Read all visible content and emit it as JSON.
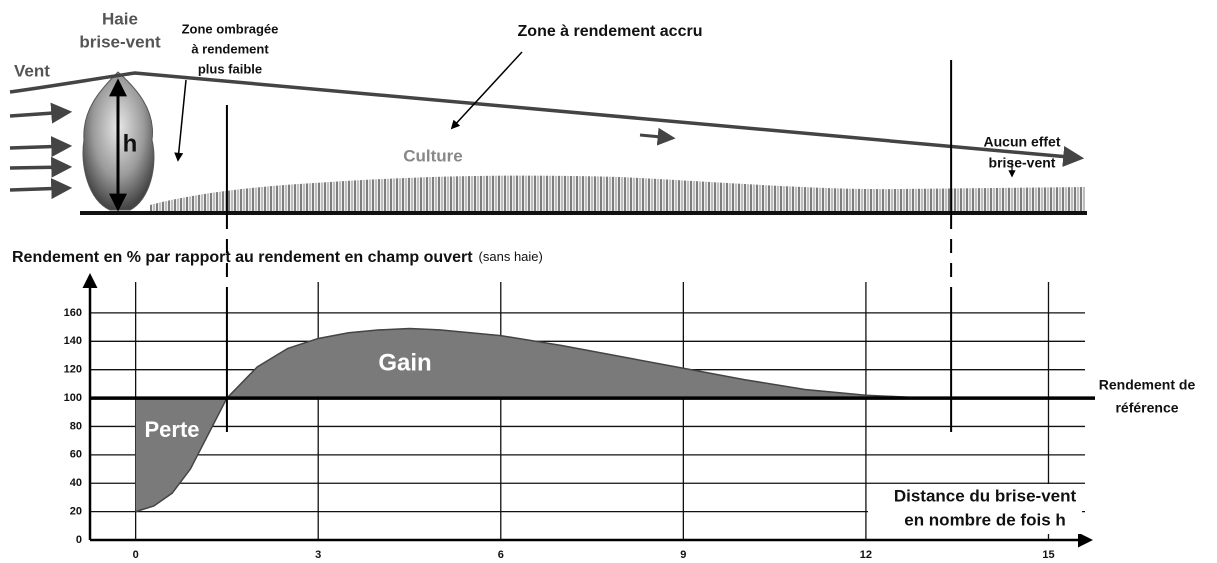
{
  "diagram": {
    "hedge_label": [
      "Haie",
      "brise-vent"
    ],
    "wind": "Vent",
    "height": "h",
    "shaded_zone": [
      "Zone ombragée",
      "à rendement",
      "plus faible"
    ],
    "increased_zone": "Zone à rendement accru",
    "crop": "Culture",
    "no_effect": [
      "Aucun effet",
      "brise-vent"
    ]
  },
  "chart_data": {
    "type": "area",
    "y_label": "Rendement en % par rapport au rendement en champ ouvert",
    "y_label_note": "(sans haie)",
    "x_label": [
      "Distance du brise-vent",
      "en nombre de fois h"
    ],
    "x": [
      0,
      0.3,
      0.6,
      0.9,
      1.2,
      1.5,
      2,
      2.5,
      3,
      3.5,
      4,
      4.5,
      5,
      6,
      7,
      8,
      9,
      10,
      11,
      12,
      13,
      13.4
    ],
    "values": [
      20,
      24,
      33,
      50,
      75,
      100,
      122,
      135,
      142,
      146,
      148,
      149,
      148,
      144,
      137,
      129,
      121,
      113,
      106,
      102,
      100,
      100
    ],
    "color": "#7a7a7a",
    "reference": 100,
    "reference_label": [
      "Rendement de",
      "référence"
    ],
    "annotations": [
      "Gain",
      "Perte"
    ],
    "xlim": [
      -0.75,
      15.6
    ],
    "ylim": [
      0,
      186
    ],
    "xticks": [
      0,
      3,
      6,
      9,
      12,
      15
    ],
    "yticks": [
      0,
      20,
      40,
      60,
      80,
      100,
      120,
      140,
      160
    ],
    "grid": true
  }
}
